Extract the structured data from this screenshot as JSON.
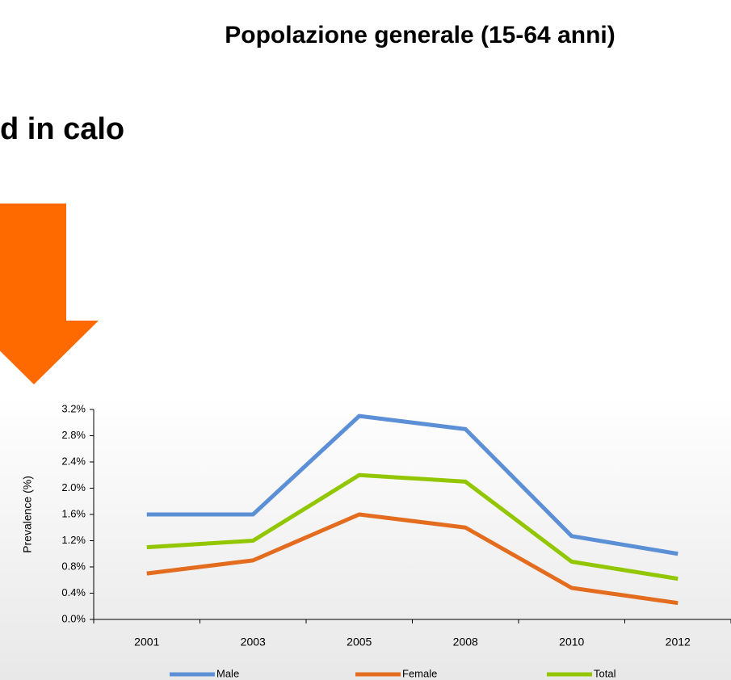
{
  "title": "Popolazione generale (15-64 anni)",
  "heading": "d in calo",
  "chart_data": {
    "type": "line",
    "ylabel": "Prevalence (%)",
    "categories": [
      "2001",
      "2003",
      "2005",
      "2008",
      "2010",
      "2012"
    ],
    "series": [
      {
        "name": "Male",
        "color": "#5b8fd6",
        "values": [
          1.6,
          1.6,
          3.1,
          2.9,
          1.27,
          1.0
        ]
      },
      {
        "name": "Female",
        "color": "#e46c1e",
        "values": [
          0.7,
          0.9,
          1.6,
          1.4,
          0.48,
          0.25
        ]
      },
      {
        "name": "Total",
        "color": "#92c700",
        "values": [
          1.1,
          1.2,
          2.2,
          2.1,
          0.88,
          0.62
        ]
      }
    ],
    "ylim": [
      0,
      3.2
    ],
    "yticks": [
      {
        "value": 0,
        "label": "0.0%"
      },
      {
        "value": 0.4,
        "label": "0.4%"
      },
      {
        "value": 0.8,
        "label": "0.8%"
      },
      {
        "value": 1.2,
        "label": "1.2%"
      },
      {
        "value": 1.6,
        "label": "1.6%"
      },
      {
        "value": 2.0,
        "label": "2.0%"
      },
      {
        "value": 2.4,
        "label": "2.4%"
      },
      {
        "value": 2.8,
        "label": "2.8%"
      },
      {
        "value": 3.2,
        "label": "3.2%"
      }
    ],
    "legend": "bottom"
  }
}
